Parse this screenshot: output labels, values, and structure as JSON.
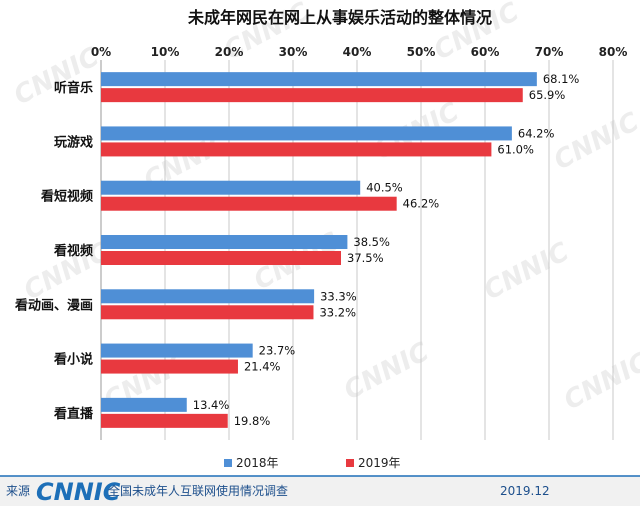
{
  "chart_data": {
    "type": "bar",
    "orientation": "horizontal",
    "title": "未成年网民在网上从事娱乐活动的整体情况",
    "categories": [
      "听音乐",
      "玩游戏",
      "看短视频",
      "看视频",
      "看动画、漫画",
      "看小说",
      "看直播"
    ],
    "series": [
      {
        "name": "2018年",
        "values": [
          68.1,
          64.2,
          40.5,
          38.5,
          33.3,
          23.7,
          13.4
        ],
        "labels": [
          "68.1%",
          "64.2%",
          "40.5%",
          "38.5%",
          "33.3%",
          "23.7%",
          "13.4%"
        ],
        "color": "#4f8fd6"
      },
      {
        "name": "2019年",
        "values": [
          65.9,
          61.0,
          46.2,
          37.5,
          33.2,
          21.4,
          19.8
        ],
        "labels": [
          "65.9%",
          "61.0%",
          "46.2%",
          "37.5%",
          "33.2%",
          "21.4%",
          "19.8%"
        ],
        "color": "#e8393f"
      }
    ],
    "xlim": [
      0,
      80
    ],
    "ticks": [
      "0%",
      "10%",
      "20%",
      "30%",
      "40%",
      "50%",
      "60%",
      "70%",
      "80%"
    ],
    "axis_position": "top",
    "grid": true,
    "legend_position": "bottom"
  },
  "footer": {
    "source_label": "来源",
    "logo_text": "CNNIC",
    "survey_name": "全国未成年人互联网使用情况调查",
    "date": "2019.12"
  },
  "watermark_text": "CNNIC",
  "colors": {
    "footer_bg": "#f1f1f1",
    "footer_border": "#1d6fb8",
    "grid": "#c8c8c8"
  }
}
